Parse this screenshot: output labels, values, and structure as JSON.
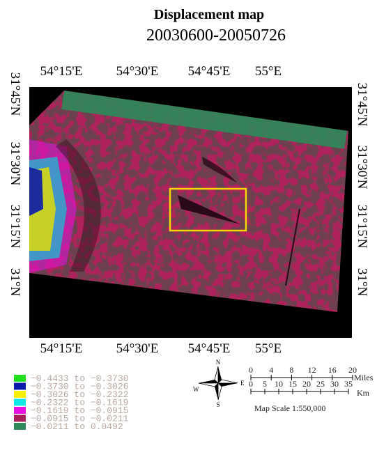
{
  "header": {
    "title": "Displacement map",
    "subtitle": "20030600-20050726"
  },
  "map": {
    "top_labels": [
      "54°15'E",
      "54°30'E",
      "54°45'E",
      "55°E"
    ],
    "bottom_labels": [
      "54°15'E",
      "54°30'E",
      "54°45'E",
      "55°E"
    ],
    "left_labels": [
      "31°45'N",
      "31°30'N",
      "31°15'N",
      "31°N"
    ],
    "right_labels": [
      "31°45'N",
      "31°30'N",
      "31°15'N",
      "31°N"
    ]
  },
  "legend": [
    {
      "color": "#22e01e",
      "label": "−0.4433 to −0.3730"
    },
    {
      "color": "#0a1aa8",
      "label": "−0.3730 to −0.3026"
    },
    {
      "color": "#f4f000",
      "label": "−0.3026 to −0.2322"
    },
    {
      "color": "#10e8e8",
      "label": "−0.2322 to −0.1619"
    },
    {
      "color": "#e810e0",
      "label": "−0.1619 to −0.0915"
    },
    {
      "color": "#a8205a",
      "label": "−0.0915 to −0.0211"
    },
    {
      "color": "#2e8a5a",
      "label": "−0.0211 to 0.0492"
    }
  ],
  "compass": {
    "n": "N",
    "e": "E",
    "s": "S",
    "w": "W"
  },
  "scale": {
    "miles": [
      "0",
      "4",
      "8",
      "12",
      "16",
      "20"
    ],
    "miles_unit": "Miles",
    "km": [
      "0",
      "5",
      "10",
      "15",
      "20",
      "25",
      "30",
      "35"
    ],
    "km_unit": "Km",
    "caption": "Map Scale 1:550,000"
  }
}
